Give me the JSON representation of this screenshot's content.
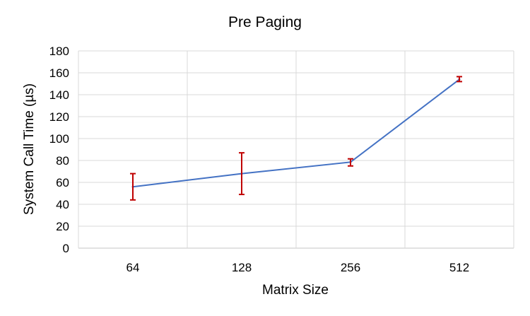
{
  "chart_data": {
    "type": "line",
    "title": "Pre Paging",
    "xlabel": "Matrix Size",
    "ylabel": "System Call Time (µs)",
    "categories": [
      "64",
      "128",
      "256",
      "512"
    ],
    "ylim": [
      0,
      180
    ],
    "yticks": [
      0,
      20,
      40,
      60,
      80,
      100,
      120,
      140,
      160,
      180
    ],
    "grid": true,
    "series": [
      {
        "values": [
          56,
          68,
          78.5,
          154
        ],
        "error_low": [
          44,
          49,
          75,
          152
        ],
        "error_high": [
          68,
          87,
          81.5,
          156.5
        ]
      }
    ],
    "colors": {
      "line": "#4472C4",
      "error_bar": "#C00000",
      "grid": "#D9D9D9"
    }
  }
}
